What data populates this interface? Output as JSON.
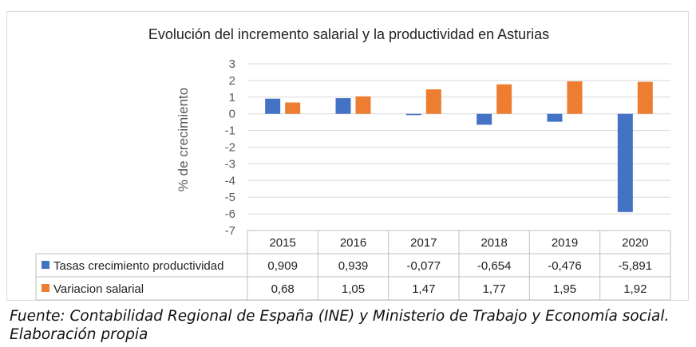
{
  "chart_data": {
    "type": "bar",
    "title": "Evolución del incremento salarial y la productividad en Asturias",
    "xlabel": "",
    "ylabel": "% de crecimiento",
    "ylim": [
      -7,
      3
    ],
    "yticks": [
      3,
      2,
      1,
      0,
      -1,
      -2,
      -3,
      -4,
      -5,
      -6,
      -7
    ],
    "grid": true,
    "legend": "data-table",
    "categories": [
      "2015",
      "2016",
      "2017",
      "2018",
      "2019",
      "2020"
    ],
    "series": [
      {
        "name": "Tasas crecimiento productividad",
        "color": "#4472c4",
        "values": [
          0.909,
          0.939,
          -0.077,
          -0.654,
          -0.476,
          -5.891
        ],
        "labels": [
          "0,909",
          "0,939",
          "-0,077",
          "-0,654",
          "-0,476",
          "-5,891"
        ]
      },
      {
        "name": "Variacion salarial",
        "color": "#ed7d31",
        "values": [
          0.68,
          1.05,
          1.47,
          1.77,
          1.95,
          1.92
        ],
        "labels": [
          "0,68",
          "1,05",
          "1,47",
          "1,77",
          "1,95",
          "1,92"
        ]
      }
    ]
  },
  "caption": "Fuente: Contabilidad Regional de España (INE) y Ministerio de Trabajo y Economía social. Elaboración propia"
}
